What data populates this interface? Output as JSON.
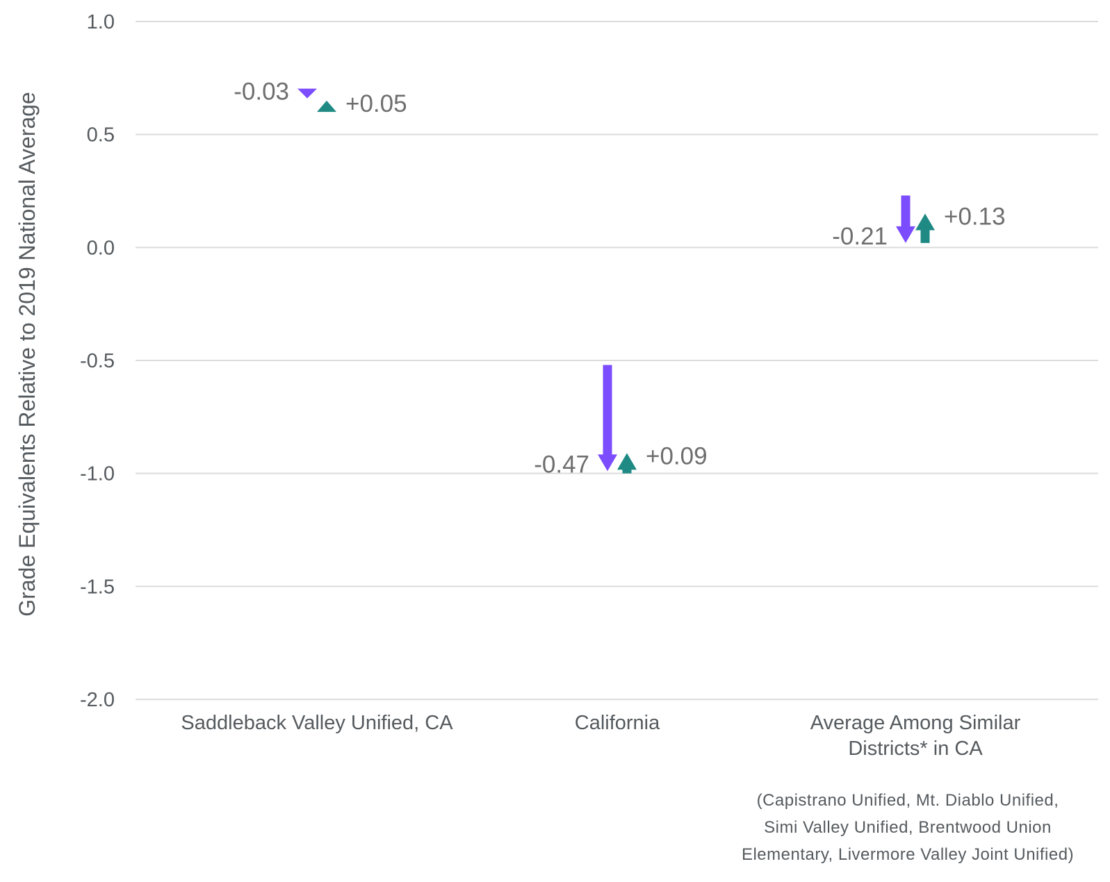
{
  "chart_data": {
    "type": "arrow",
    "ylabel": "Grade Equivalents Relative to 2019 National Average",
    "ylim": [
      -2.0,
      1.0
    ],
    "yticks": [
      1.0,
      0.5,
      0.0,
      -0.5,
      -1.0,
      -1.5,
      -2.0
    ],
    "ytick_labels": [
      "1.0",
      "0.5",
      "0.0",
      "-0.5",
      "-1.0",
      "-1.5",
      "-2.0"
    ],
    "grid": true,
    "categories": [
      [
        "Saddleback Valley Unified, CA"
      ],
      [
        "California"
      ],
      [
        "Average Among Similar",
        "Districts* in CA"
      ]
    ],
    "series": [
      {
        "values": [
          {
            "from": 0.69,
            "to": 0.66,
            "label": "-0.03"
          },
          {
            "from": -0.52,
            "to": -0.99,
            "label": "-0.47"
          },
          {
            "from": 0.23,
            "to": 0.02,
            "label": "-0.21"
          }
        ],
        "color": "#7c4dff"
      },
      {
        "values": [
          {
            "from": 0.6,
            "to": 0.65,
            "label": "+0.05"
          },
          {
            "from": -1.0,
            "to": -0.91,
            "label": "+0.09"
          },
          {
            "from": 0.02,
            "to": 0.15,
            "label": "+0.13"
          }
        ],
        "color": "#1f8a84"
      }
    ],
    "note": [
      "(Capistrano Unified, Mt. Diablo Unified,",
      "Simi Valley Unified, Brentwood Union",
      "Elementary, Livermore Valley Joint Unified)"
    ]
  }
}
